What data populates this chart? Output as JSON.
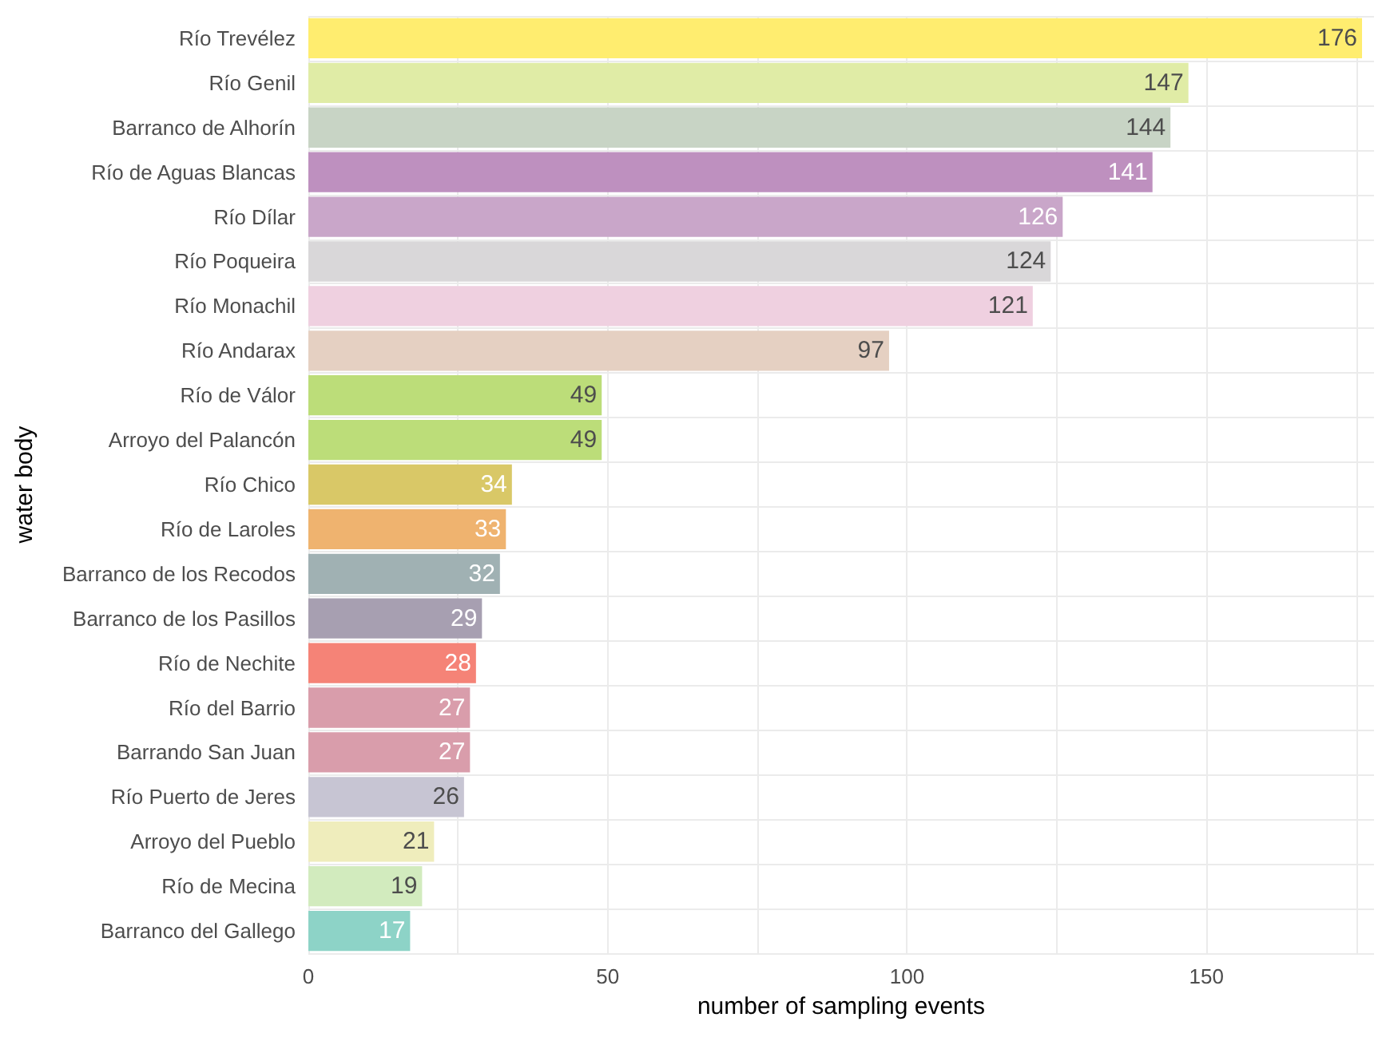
{
  "chart_data": {
    "type": "bar",
    "orientation": "horizontal",
    "xlabel": "number of sampling events",
    "ylabel": "water body",
    "categories": [
      "Río Trevélez",
      "Río Genil",
      "Barranco de Alhorín",
      "Río de Aguas Blancas",
      "Río Dílar",
      "Río Poqueira",
      "Río Monachil",
      "Río Andarax",
      "Río de Válor",
      "Arroyo del Palancón",
      "Río Chico",
      "Río de Laroles",
      "Barranco de los Recodos",
      "Barranco de los Pasillos",
      "Río de Nechite",
      "Río del Barrio",
      "Barrando San Juan",
      "Río Puerto de Jeres",
      "Arroyo del Pueblo",
      "Río de Mecina",
      "Barranco del Gallego"
    ],
    "values": [
      176,
      147,
      144,
      141,
      126,
      124,
      121,
      97,
      49,
      49,
      34,
      33,
      32,
      29,
      28,
      27,
      27,
      26,
      21,
      19,
      17
    ],
    "colors": [
      "#ffed6f",
      "#e0eca6",
      "#c8d4c5",
      "#be90bf",
      "#c9a6c9",
      "#d9d7d9",
      "#efd0e0",
      "#e5d0c2",
      "#bcdd79",
      "#bcdd79",
      "#d9c867",
      "#efb36f",
      "#a0b1b3",
      "#a79fb1",
      "#f58377",
      "#d99dab",
      "#d99dab",
      "#c7c5d3",
      "#efedbc",
      "#d2ebbe",
      "#8dd3c7"
    ],
    "data_labels": true,
    "xlim": [
      0,
      178
    ],
    "xticks": [
      0,
      {
        "value": 25,
        "label": null
      },
      50,
      {
        "value": 75,
        "label": null
      },
      100,
      {
        "value": 125,
        "label": null
      },
      150,
      {
        "value": 175,
        "label": null
      }
    ],
    "grid": true
  }
}
